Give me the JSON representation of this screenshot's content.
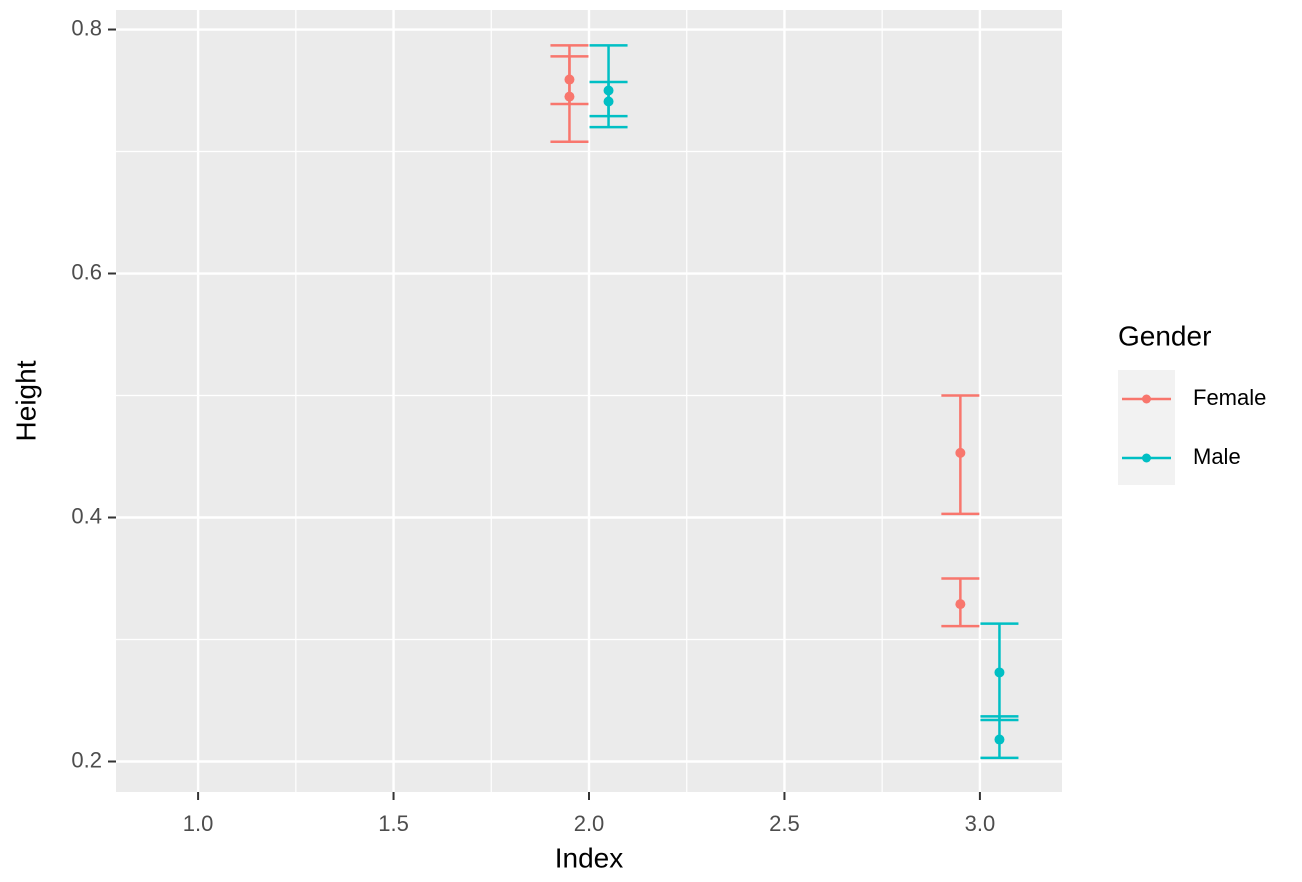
{
  "chart_data": {
    "type": "errorbar",
    "x_label": "Index",
    "y_label": "Height",
    "xlim": [
      0.79,
      3.21
    ],
    "ylim": [
      0.175,
      0.816
    ],
    "xticks": [
      {
        "value": 1,
        "label": "1.0"
      },
      {
        "value": 1.5,
        "label": "1.5"
      },
      {
        "value": 2,
        "label": "2.0"
      },
      {
        "value": 2.5,
        "label": "2.5"
      },
      {
        "value": 3,
        "label": "3.0"
      }
    ],
    "yticks": [
      0.2,
      0.4,
      0.6,
      0.8
    ],
    "grid": true,
    "legend_title": "Gender",
    "legend_position": "right",
    "series": [
      {
        "name": "Female",
        "color": "#F8766D",
        "x": [
          2,
          2,
          3,
          3
        ],
        "values": [
          0.759,
          0.745,
          0.453,
          0.329
        ],
        "lower": [
          0.739,
          0.708,
          0.403,
          0.311
        ],
        "upper": [
          0.778,
          0.787,
          0.5,
          0.35
        ]
      },
      {
        "name": "Male",
        "color": "#00BFC4",
        "x": [
          2,
          2,
          3,
          3
        ],
        "values": [
          0.75,
          0.741,
          0.273,
          0.218
        ],
        "lower": [
          0.72,
          0.729,
          0.234,
          0.203
        ],
        "upper": [
          0.787,
          0.757,
          0.313,
          0.237
        ]
      }
    ]
  }
}
